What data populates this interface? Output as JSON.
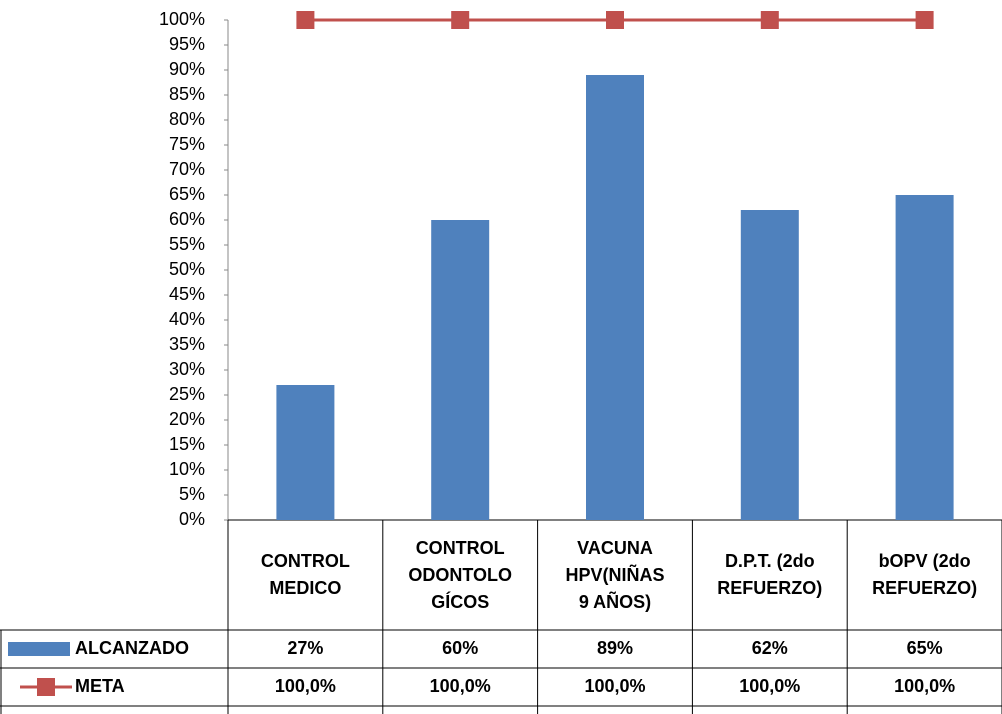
{
  "chart_data": {
    "type": "bar",
    "categories": [
      "CONTROL\nMEDICO",
      "CONTROL\nODONTOLO\nGÍCOS",
      "VACUNA\nHPV(NIÑAS\n9 AÑOS)",
      "D.P.T. (2do\nREFUERZO)",
      "bOPV (2do\nREFUERZO)"
    ],
    "series": [
      {
        "name": "ALCANZADO",
        "type": "bar",
        "color": "#4f81bd",
        "values": [
          27,
          60,
          89,
          62,
          65
        ],
        "value_labels": [
          "27%",
          "60%",
          "89%",
          "62%",
          "65%"
        ]
      },
      {
        "name": "META",
        "type": "line",
        "color": "#c0504d",
        "values": [
          100,
          100,
          100,
          100,
          100
        ],
        "value_labels": [
          "100,0%",
          "100,0%",
          "100,0%",
          "100,0%",
          "100,0%"
        ]
      }
    ],
    "ylim": [
      0,
      100
    ],
    "yticks": [
      {
        "value": 0,
        "label": "0%"
      },
      {
        "value": 5,
        "label": "5%"
      },
      {
        "value": 10,
        "label": "10%"
      },
      {
        "value": 15,
        "label": "15%"
      },
      {
        "value": 20,
        "label": "20%"
      },
      {
        "value": 25,
        "label": "25%"
      },
      {
        "value": 30,
        "label": "30%"
      },
      {
        "value": 35,
        "label": "35%"
      },
      {
        "value": 40,
        "label": "40%"
      },
      {
        "value": 45,
        "label": "45%"
      },
      {
        "value": 50,
        "label": "50%"
      },
      {
        "value": 55,
        "label": "55%"
      },
      {
        "value": 60,
        "label": "60%"
      },
      {
        "value": 65,
        "label": "65%"
      },
      {
        "value": 70,
        "label": "70%"
      },
      {
        "value": 75,
        "label": "75%"
      },
      {
        "value": 80,
        "label": "80%"
      },
      {
        "value": 85,
        "label": "85%"
      },
      {
        "value": 90,
        "label": "90%"
      },
      {
        "value": 95,
        "label": "95%"
      },
      {
        "value": 100,
        "label": "100%"
      }
    ],
    "grid": false
  }
}
